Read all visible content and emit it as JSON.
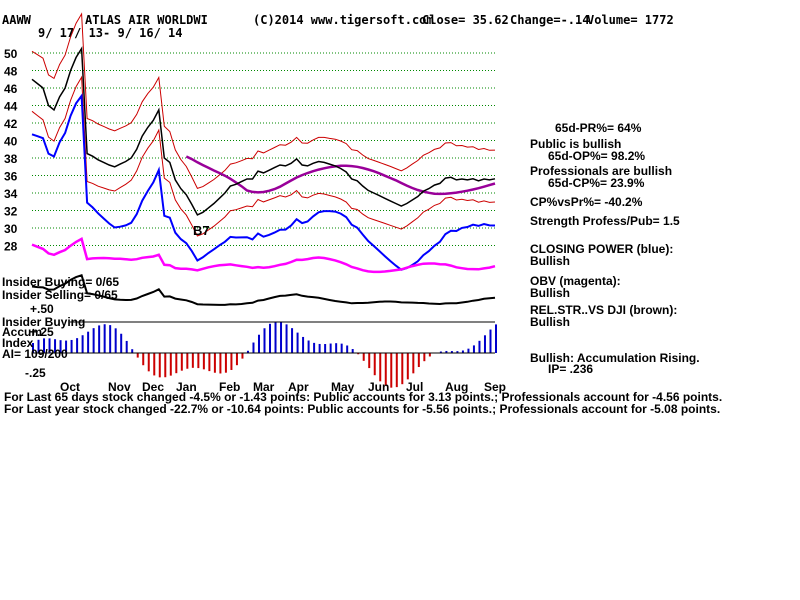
{
  "header": {
    "ticker": "AAWW",
    "company": "ATLAS AIR WORLDWI",
    "copyright": "(C)2014 www.tigersoft.com",
    "close": "Close=  35.62",
    "change": "Change=-.14",
    "volume": "Volume= 1772",
    "date_range": "9/ 17/ 13-  9/ 16/ 14"
  },
  "right_panel": {
    "pr": "65d-PR%= 64%",
    "public_bullish": "Public is bullish",
    "op": "65d-OP%= 98.2%",
    "pros_bullish": "Professionals are bullish",
    "cp": "65d-CP%= 23.9%",
    "cpvspr": "CP%vsPr%= -40.2%",
    "strength": "Strength Profess/Pub= 1.5",
    "closing_power": "CLOSING POWER (blue):",
    "closing_power_state": "Bullish",
    "obv": "OBV (magenta):",
    "obv_state": "Bullish",
    "relstr": "REL.STR..VS DJI (brown):",
    "relstr_state": "Bullish",
    "accum": "Bullish: Accumulation Rising.",
    "ip": "IP=  .236"
  },
  "left_panel": {
    "insider_buying": "Insider Buying= 0/65",
    "insider_selling": "Insider Selling= 0/65",
    "insider_buying2": "Insider Buying",
    "accum_label": "Accum",
    "index_label": "Index",
    "ai": "AI= 109/200",
    "plus50": "+.50",
    "plus25": "+.25",
    "minus25": "-.25",
    "marker_b": "B7"
  },
  "footer": {
    "line1": "For Last 65 days stock changed -4.5% or -1.43 points:  Public accounts for  3.13 points.;  Professionals account for -4.56 points.",
    "line2": "For Last year stock changed -22.7% or -10.64 points:  Public accounts for -5.56 points.;  Professionals account for -5.08 points."
  },
  "chart_data": {
    "type": "line",
    "title": "ATLAS AIR WORLDWI",
    "y_ticks": [
      "50",
      "48",
      "46",
      "44",
      "42",
      "40",
      "38",
      "36",
      "34",
      "32",
      "30",
      "28"
    ],
    "ylim": [
      27,
      52
    ],
    "x_ticks": [
      "Oct",
      "Nov",
      "Dec",
      "Jan",
      "Feb",
      "Mar",
      "Apr",
      "May",
      "Jun",
      "Jul",
      "Aug",
      "Sep"
    ],
    "colors": {
      "price": "#000000",
      "band": "#cc0000",
      "ma": "#990099",
      "closing_power": "#0000ff",
      "obv": "#ff00ff",
      "relstr": "#000000",
      "accum_pos": "#0000cc",
      "accum_neg": "#cc0000",
      "grid": "#008800"
    },
    "series": [
      {
        "name": "price",
        "x": [
          0,
          3,
          6,
          9,
          12,
          15,
          18,
          21,
          24,
          27,
          30,
          33,
          36,
          39,
          42,
          45,
          48,
          51,
          54,
          57,
          60,
          63,
          66,
          69,
          72,
          75,
          78,
          81,
          84,
          87,
          90,
          93,
          96,
          99,
          102,
          105,
          108,
          111,
          114,
          117,
          120,
          123,
          126,
          129,
          132,
          135,
          138,
          141,
          144,
          147,
          150,
          153,
          156,
          159,
          162,
          165,
          168,
          171,
          174,
          177,
          180,
          183,
          186,
          189,
          192,
          195,
          198,
          201,
          204,
          207,
          210,
          213,
          216,
          219,
          222,
          225,
          228,
          231,
          234,
          237,
          240,
          243,
          246,
          249,
          252
        ],
        "values": [
          47,
          46.5,
          46,
          44,
          43.5,
          45,
          46,
          48,
          49.5,
          50.5,
          38.5,
          38.2,
          37.8,
          37.5,
          37.2,
          37,
          37.3,
          37.6,
          38,
          39,
          40.5,
          41.5,
          42.3,
          43.5,
          38,
          37.5,
          35.5,
          34.5,
          33.8,
          32.7,
          31.5,
          31.8,
          32.3,
          32.8,
          33.4,
          34,
          34.8,
          35,
          35.3,
          35.6,
          35.6,
          36.5,
          36.3,
          36.6,
          36.9,
          37.2,
          37.1,
          37.4,
          37.9,
          37.2,
          37.1,
          37.4,
          37.6,
          37.5,
          37.3,
          37.1,
          36.8,
          36.4,
          35.6,
          35.4,
          34.8,
          34.3,
          34,
          33.7,
          33.4,
          33.1,
          32.8,
          32.5,
          32.8,
          33.2,
          33.6,
          34.2,
          34.5,
          34.9,
          35.1,
          35.7,
          35.8,
          35.5,
          35.6,
          35.5,
          35.62,
          35.4,
          35.6,
          35.5,
          35.62
        ]
      }
    ]
  }
}
